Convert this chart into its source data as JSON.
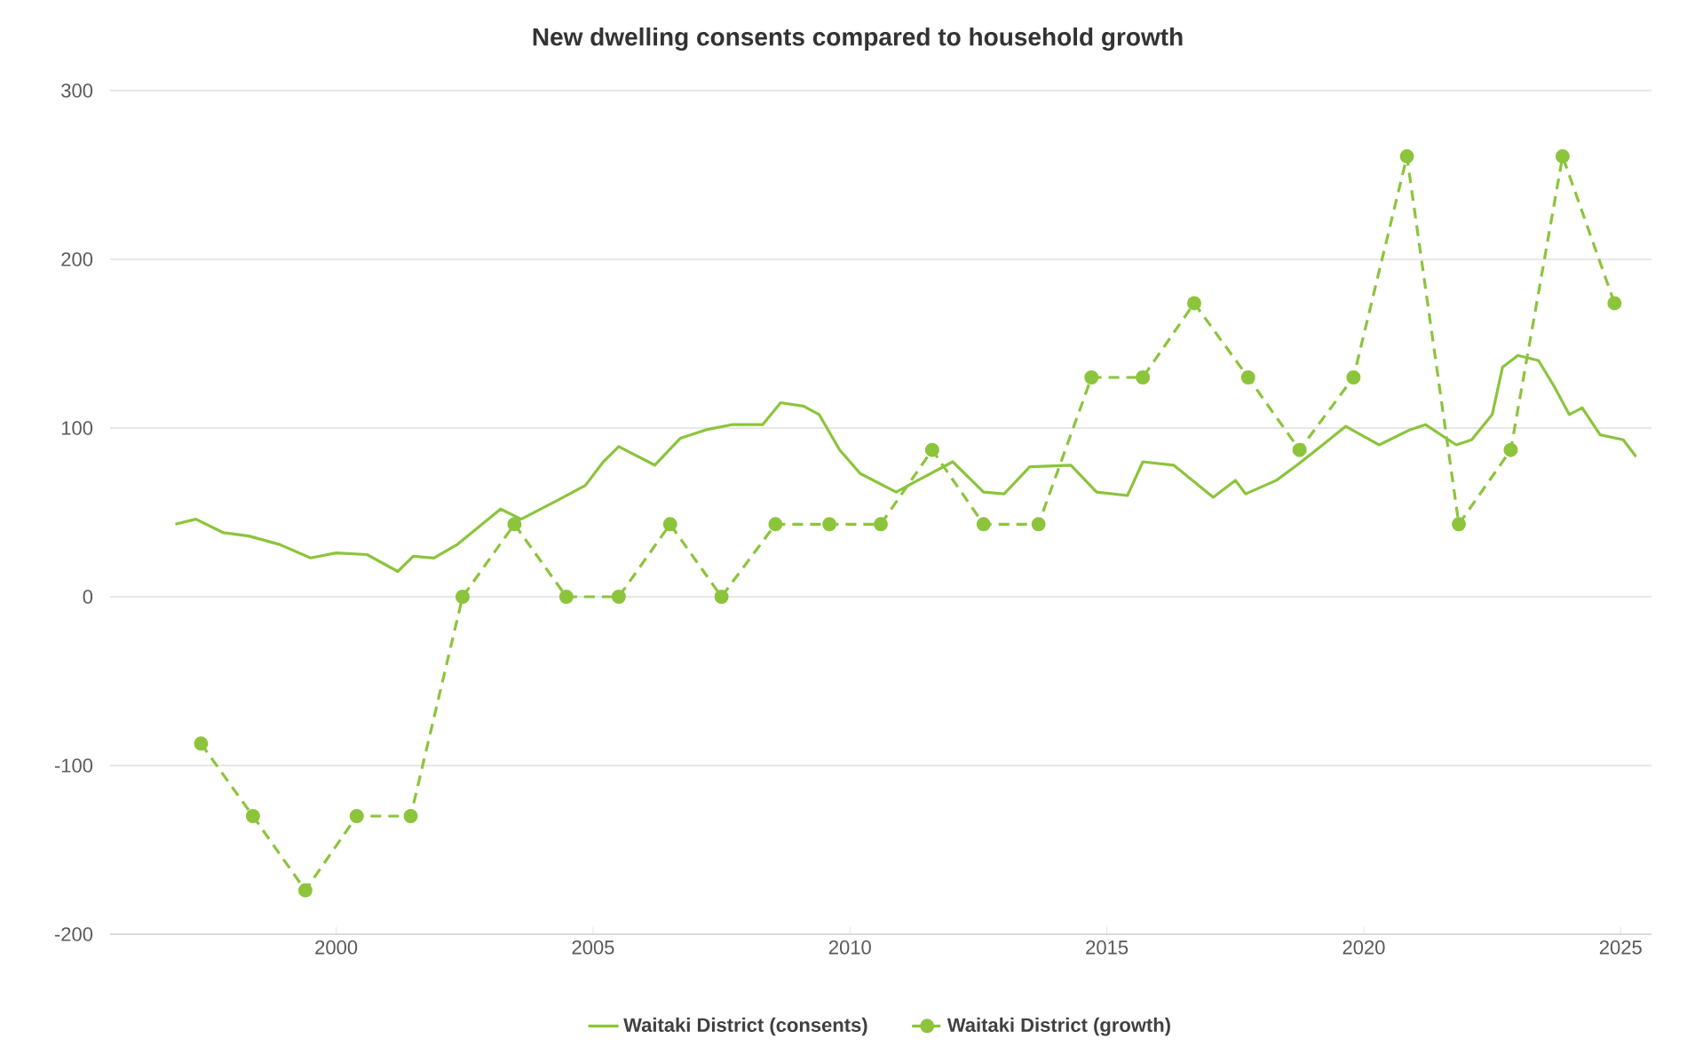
{
  "chart_data": {
    "type": "line",
    "title": "New dwelling consents compared to household growth",
    "xlim": [
      1995.6,
      2025.6
    ],
    "xticks": [
      2000,
      2005,
      2010,
      2015,
      2020,
      2025
    ],
    "ylim": [
      -200,
      300
    ],
    "yticks": [
      -200,
      -100,
      0,
      100,
      200,
      300
    ],
    "grid": "y",
    "legend": "bottom",
    "series": [
      {
        "name": "Waitaki District (consents)",
        "color": "#8cc43c",
        "line_style": "solid",
        "marker": "none",
        "x": [
          1996.87,
          1997.27,
          1997.8,
          1998.3,
          1998.9,
          1999.5,
          2000.0,
          2000.6,
          2001.2,
          2001.5,
          2001.9,
          2002.36,
          2003.2,
          2003.6,
          2004.3,
          2004.85,
          2005.2,
          2005.5,
          2006.2,
          2006.7,
          2007.2,
          2007.7,
          2008.3,
          2008.65,
          2009.1,
          2009.4,
          2009.8,
          2010.2,
          2010.9,
          2011.2,
          2012.0,
          2012.6,
          2013.0,
          2013.5,
          2014.3,
          2014.8,
          2015.4,
          2015.7,
          2016.3,
          2017.07,
          2017.5,
          2017.7,
          2018.3,
          2018.7,
          2019.2,
          2019.65,
          2020.3,
          2020.9,
          2021.2,
          2021.8,
          2022.1,
          2022.5,
          2022.7,
          2023.0,
          2023.4,
          2023.7,
          2024.0,
          2024.25,
          2024.6,
          2025.05,
          2025.3
        ],
        "values": [
          43,
          46,
          38,
          36,
          31,
          23,
          26,
          25,
          15,
          24,
          23,
          31,
          52,
          46,
          57,
          66,
          80,
          89,
          78,
          94,
          99,
          102,
          102,
          115,
          113,
          108,
          87,
          73,
          62,
          67,
          80,
          62,
          61,
          77,
          78,
          62,
          60,
          80,
          78,
          59,
          69,
          61,
          69,
          78,
          90,
          101,
          90,
          99,
          102,
          90,
          93,
          108,
          136,
          143,
          140,
          125,
          108,
          112,
          96,
          93,
          83
        ]
      },
      {
        "name": "Waitaki District (growth)",
        "color": "#8cc43c",
        "line_style": "dashed",
        "marker": "circle",
        "x": [
          1997.37,
          1998.38,
          1999.4,
          2000.4,
          2001.45,
          2002.46,
          2003.47,
          2004.48,
          2005.5,
          2006.5,
          2007.5,
          2008.55,
          2009.6,
          2010.6,
          2011.6,
          2012.6,
          2013.67,
          2014.7,
          2015.7,
          2016.7,
          2017.75,
          2018.75,
          2019.8,
          2020.84,
          2021.85,
          2022.86,
          2023.87,
          2024.88
        ],
        "values": [
          -87,
          -130,
          -174,
          -130,
          -130,
          0,
          43,
          0,
          0,
          43,
          0,
          43,
          43,
          43,
          87,
          43,
          43,
          130,
          130,
          174,
          130,
          87,
          130,
          261,
          43,
          87,
          261,
          174
        ]
      }
    ]
  }
}
